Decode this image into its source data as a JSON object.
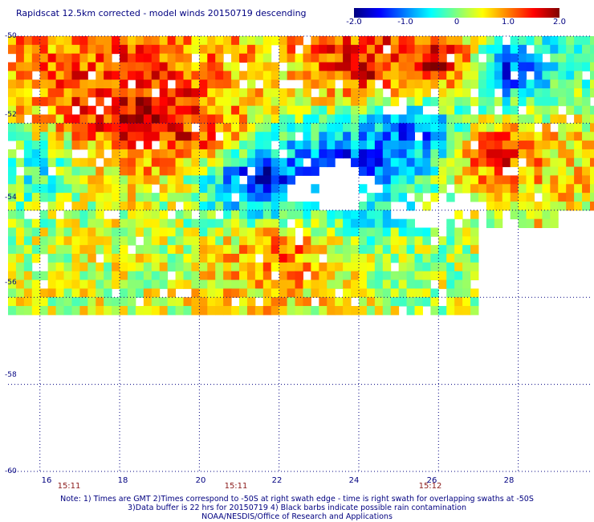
{
  "title": "Rapidscat 12.5km corrected - model winds 20150719 descending",
  "colorbar": {
    "ticks": [
      "-2.0",
      "-1.0",
      "0",
      "1.0",
      "2.0"
    ],
    "tick_values": [
      -2.0,
      -1.0,
      0,
      1.0,
      2.0
    ],
    "colors": [
      "#00007f",
      "#0000ff",
      "#007fff",
      "#00ffff",
      "#7fff7f",
      "#ffff00",
      "#ff7f00",
      "#ff0000",
      "#7f0000"
    ]
  },
  "axes": {
    "lat_labels": [
      "-50",
      "-52",
      "-54",
      "-56",
      "-58",
      "-60"
    ],
    "lat_values": [
      -50,
      -52,
      -54,
      -56,
      -58,
      -60
    ],
    "lon_labels": [
      "16",
      "18",
      "20",
      "22",
      "24",
      "26",
      "28"
    ],
    "lon_values": [
      16,
      18,
      20,
      22,
      24,
      26,
      28
    ],
    "lon_range": [
      15.2,
      29.8
    ],
    "lat_range": [
      -50,
      -60
    ],
    "grid": true,
    "grid_style": "dotted"
  },
  "time_labels": [
    {
      "text": "15:11",
      "lon": 16.6
    },
    {
      "text": "15:11",
      "lon": 20.9
    },
    {
      "text": "15:12",
      "lon": 25.9
    }
  ],
  "notes": [
    "Note: 1) Times are GMT 2)Times correspond to -50S at right swath edge - time is right swath for overlapping swaths at -50S",
    "3)Data buffer is 22 hrs for 20150719 4) Black barbs indicate possible rain contamination",
    "NOAA/NESDIS/Office of Research and Applications"
  ],
  "chart_data": {
    "type": "heatmap",
    "title": "Rapidscat 12.5km corrected - model winds 20150719 descending",
    "x_label": "",
    "y_label": "",
    "value_range": [
      -2.0,
      2.0
    ],
    "data_extent": {
      "lon": [
        15.2,
        29.8
      ],
      "lat": [
        -50,
        -56.4
      ]
    },
    "regions": [
      {
        "lon": 18.7,
        "lat": -51.8,
        "value": 1.9
      },
      {
        "lon": 17.6,
        "lat": -51.4,
        "value": 1.4
      },
      {
        "lon": 19.9,
        "lat": -52.2,
        "value": 1.5
      },
      {
        "lon": 26.0,
        "lat": -50.6,
        "value": 2.0
      },
      {
        "lon": 24.1,
        "lat": -50.7,
        "value": 1.7
      },
      {
        "lon": 27.5,
        "lat": -52.7,
        "value": 1.6
      },
      {
        "lon": 22.0,
        "lat": -55.0,
        "value": 1.2
      },
      {
        "lon": 21.5,
        "lat": -53.3,
        "value": -1.9
      },
      {
        "lon": 23.8,
        "lat": -53.0,
        "value": -1.7
      },
      {
        "lon": 27.7,
        "lat": -50.8,
        "value": -1.5
      },
      {
        "lon": 25.4,
        "lat": -52.2,
        "value": -1.4
      },
      {
        "lon": 15.8,
        "lat": -53.0,
        "value": -0.4
      },
      {
        "lon": 29.5,
        "lat": -53.0,
        "value": 0.6
      }
    ],
    "missing_areas": [
      {
        "lon": 23.5,
        "lat": -53.5
      },
      {
        "lon": 26.0,
        "lat": -54.0
      }
    ]
  }
}
